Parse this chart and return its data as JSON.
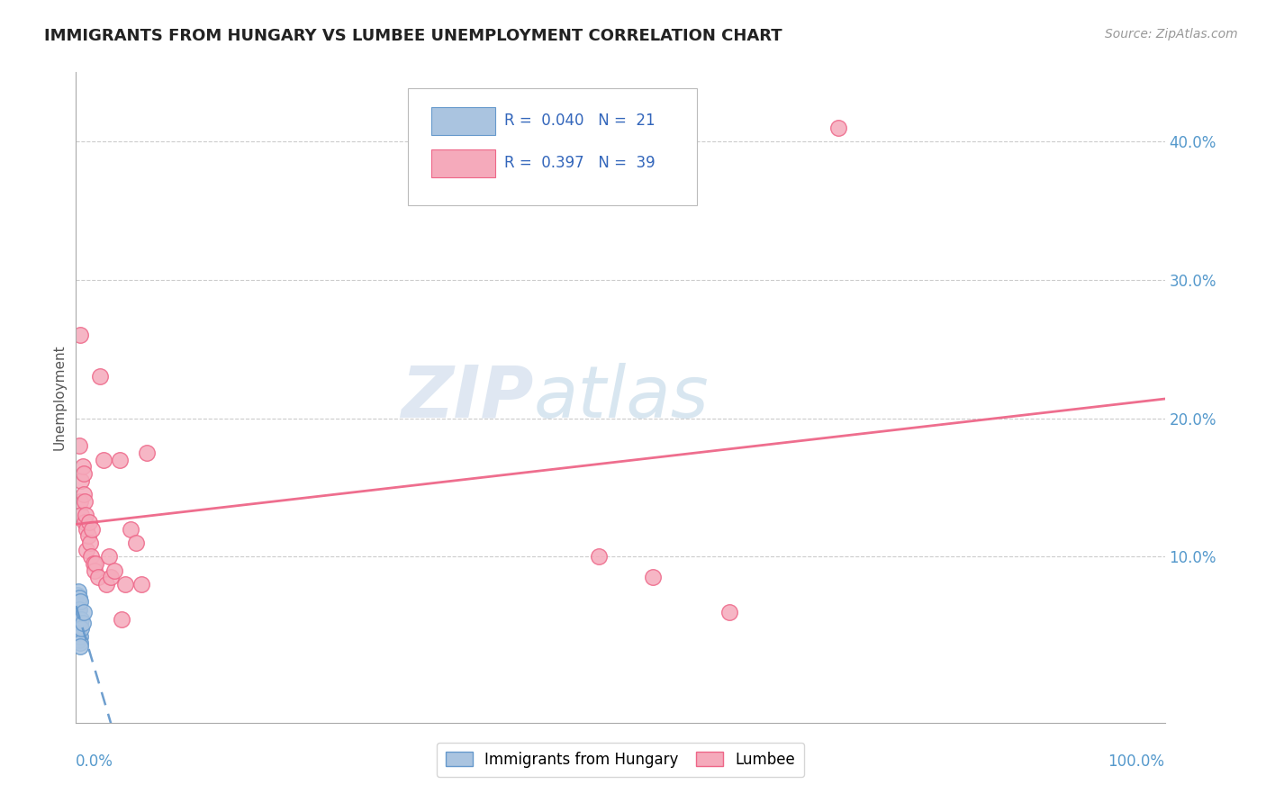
{
  "title": "IMMIGRANTS FROM HUNGARY VS LUMBEE UNEMPLOYMENT CORRELATION CHART",
  "source": "Source: ZipAtlas.com",
  "ylabel": "Unemployment",
  "xlim": [
    0.0,
    1.0
  ],
  "ylim": [
    -0.02,
    0.45
  ],
  "legend_r_hungary": "0.040",
  "legend_n_hungary": "21",
  "legend_r_lumbee": "0.397",
  "legend_n_lumbee": "39",
  "hungary_color": "#aac4e0",
  "lumbee_color": "#f5aabb",
  "hungary_line_color": "#6699cc",
  "lumbee_line_color": "#ee6688",
  "watermark_zip": "ZIP",
  "watermark_atlas": "atlas",
  "background_color": "#ffffff",
  "hungary_points_x": [
    0.001,
    0.001,
    0.001,
    0.002,
    0.002,
    0.002,
    0.002,
    0.003,
    0.003,
    0.003,
    0.003,
    0.003,
    0.004,
    0.004,
    0.004,
    0.004,
    0.004,
    0.005,
    0.005,
    0.006,
    0.007
  ],
  "hungary_points_y": [
    0.068,
    0.072,
    0.058,
    0.075,
    0.065,
    0.06,
    0.045,
    0.07,
    0.055,
    0.062,
    0.05,
    0.04,
    0.068,
    0.052,
    0.042,
    0.038,
    0.035,
    0.055,
    0.048,
    0.052,
    0.06
  ],
  "lumbee_points_x": [
    0.003,
    0.004,
    0.004,
    0.005,
    0.005,
    0.006,
    0.007,
    0.007,
    0.008,
    0.008,
    0.009,
    0.01,
    0.01,
    0.011,
    0.012,
    0.013,
    0.014,
    0.015,
    0.016,
    0.017,
    0.018,
    0.02,
    0.022,
    0.025,
    0.028,
    0.03,
    0.032,
    0.035,
    0.04,
    0.042,
    0.045,
    0.05,
    0.055,
    0.06,
    0.065,
    0.48,
    0.53,
    0.6,
    0.7
  ],
  "lumbee_points_y": [
    0.18,
    0.26,
    0.14,
    0.155,
    0.13,
    0.165,
    0.16,
    0.145,
    0.14,
    0.125,
    0.13,
    0.12,
    0.105,
    0.115,
    0.125,
    0.11,
    0.1,
    0.12,
    0.095,
    0.09,
    0.095,
    0.085,
    0.23,
    0.17,
    0.08,
    0.1,
    0.085,
    0.09,
    0.17,
    0.055,
    0.08,
    0.12,
    0.11,
    0.08,
    0.175,
    0.1,
    0.085,
    0.06,
    0.41
  ]
}
